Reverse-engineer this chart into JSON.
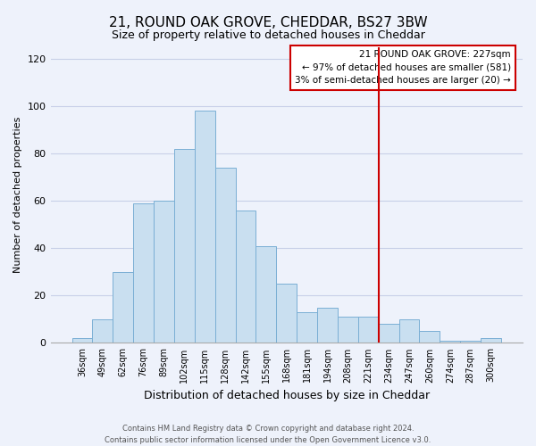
{
  "title": "21, ROUND OAK GROVE, CHEDDAR, BS27 3BW",
  "subtitle": "Size of property relative to detached houses in Cheddar",
  "xlabel": "Distribution of detached houses by size in Cheddar",
  "ylabel": "Number of detached properties",
  "bar_labels": [
    "36sqm",
    "49sqm",
    "62sqm",
    "76sqm",
    "89sqm",
    "102sqm",
    "115sqm",
    "128sqm",
    "142sqm",
    "155sqm",
    "168sqm",
    "181sqm",
    "194sqm",
    "208sqm",
    "221sqm",
    "234sqm",
    "247sqm",
    "260sqm",
    "274sqm",
    "287sqm",
    "300sqm"
  ],
  "bar_values": [
    2,
    10,
    30,
    59,
    60,
    82,
    98,
    74,
    56,
    41,
    25,
    13,
    15,
    11,
    11,
    8,
    10,
    5,
    1,
    1,
    2
  ],
  "bar_color": "#c9dff0",
  "bar_edge_color": "#7aafd4",
  "vline_x": 14.5,
  "vline_color": "#cc0000",
  "annotation_title": "21 ROUND OAK GROVE: 227sqm",
  "annotation_line1": "← 97% of detached houses are smaller (581)",
  "annotation_line2": "3% of semi-detached houses are larger (20) →",
  "ylim": [
    0,
    125
  ],
  "yticks": [
    0,
    20,
    40,
    60,
    80,
    100,
    120
  ],
  "footer1": "Contains HM Land Registry data © Crown copyright and database right 2024.",
  "footer2": "Contains public sector information licensed under the Open Government Licence v3.0.",
  "bg_color": "#eef2fb",
  "grid_color": "#c8d0e8"
}
